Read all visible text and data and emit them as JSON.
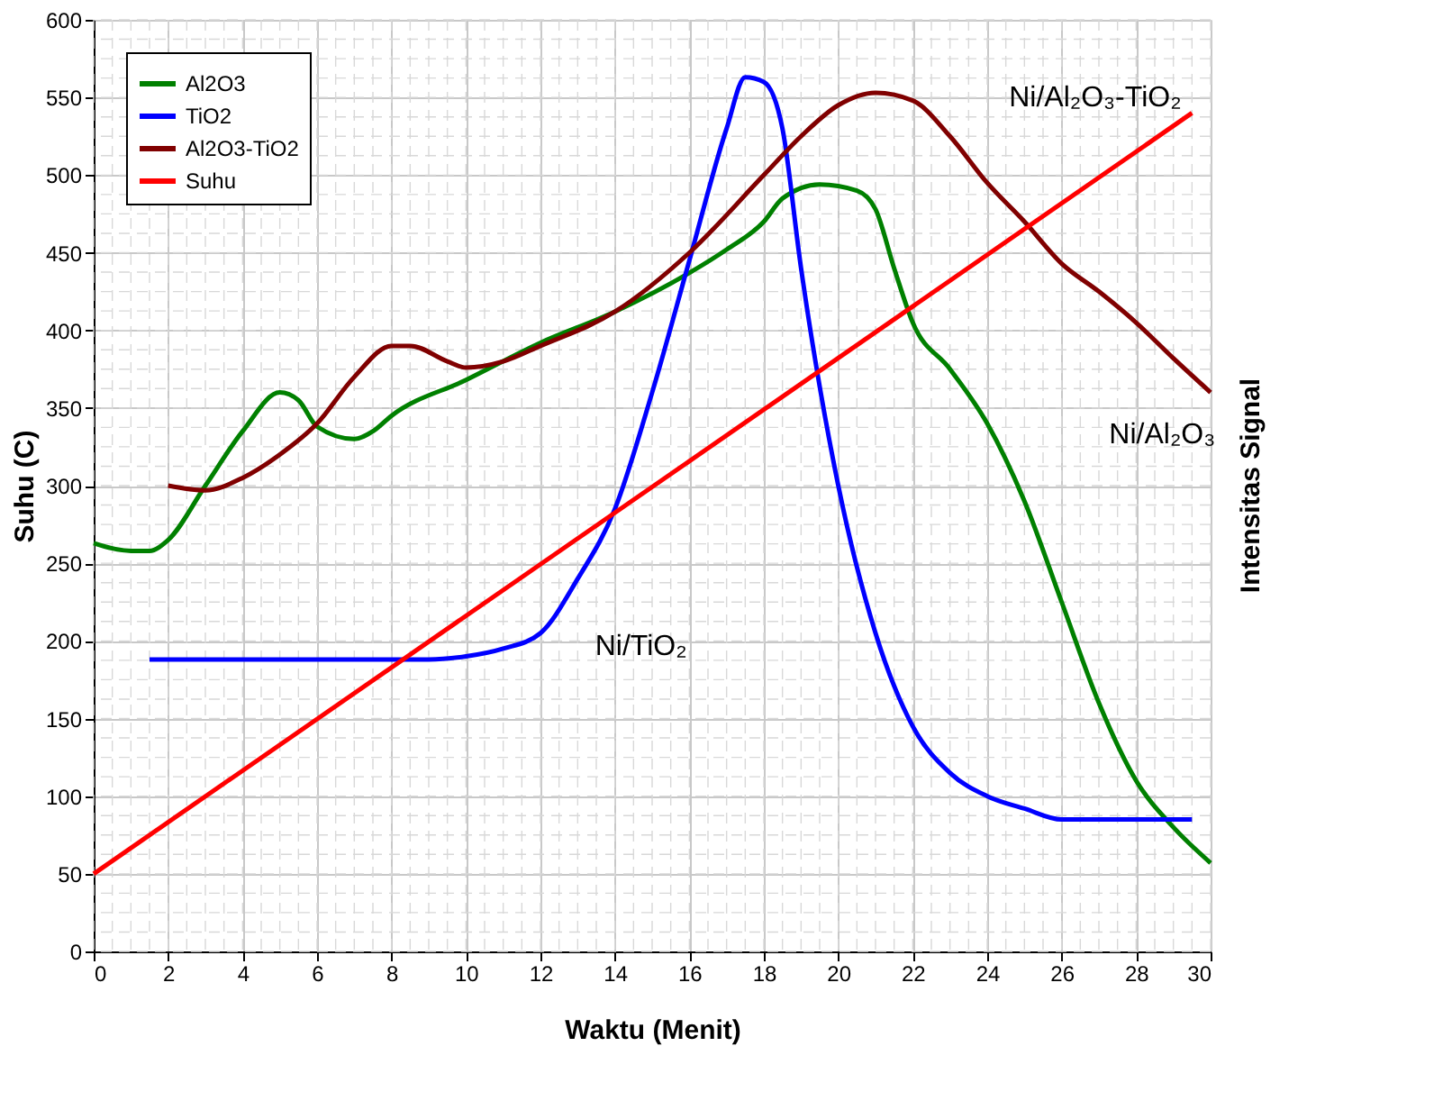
{
  "chart_data": {
    "type": "line",
    "xlabel": "Waktu (Menit)",
    "ylabel": "Suhu (C)",
    "y2label": "Intensitas Signal",
    "xlim": [
      0,
      30
    ],
    "xticks": [
      0,
      2,
      4,
      6,
      8,
      10,
      12,
      14,
      16,
      18,
      20,
      22,
      24,
      26,
      28,
      30
    ],
    "ylim": [
      0,
      600
    ],
    "yticks": [
      0,
      50,
      100,
      150,
      200,
      250,
      300,
      350,
      400,
      450,
      500,
      550,
      600
    ],
    "grid": true,
    "legend": "top left",
    "line_style": "solid",
    "marker": "none",
    "series": [
      {
        "name": "Al2O3",
        "color": "#008000",
        "x": [
          0,
          1,
          1.5,
          2,
          3,
          4,
          5,
          5.5,
          6,
          7,
          7.5,
          8,
          10,
          12,
          14,
          16,
          17,
          18,
          18.5,
          19.5,
          20.5,
          21,
          21.5,
          22,
          23,
          24,
          25,
          26,
          27,
          28,
          29,
          30
        ],
        "values": [
          263,
          258,
          258,
          265,
          300,
          335,
          360,
          355,
          338,
          330,
          335,
          345,
          368,
          392,
          412,
          437,
          452,
          470,
          485,
          494,
          490,
          478,
          440,
          405,
          375,
          340,
          290,
          225,
          160,
          110,
          80,
          57
        ]
      },
      {
        "name": "TiO2",
        "color": "#0000ff",
        "x": [
          1.5,
          4,
          8,
          9,
          10,
          11,
          12,
          13,
          14,
          15,
          16,
          17,
          17.5,
          18,
          18.5,
          19,
          20,
          21,
          22,
          23,
          24,
          25,
          26,
          27,
          29.5
        ],
        "values": [
          188,
          188,
          188,
          188,
          190,
          195,
          205,
          240,
          285,
          360,
          445,
          530,
          563,
          560,
          530,
          440,
          300,
          205,
          145,
          115,
          100,
          92,
          85,
          85,
          85
        ]
      },
      {
        "name": "Al2O3-TiO2",
        "color": "#800000",
        "x": [
          2,
          3,
          4,
          5,
          6,
          7,
          8,
          8.5,
          9.5,
          10,
          11,
          12,
          14,
          16,
          18,
          19,
          20,
          21,
          22,
          23,
          24,
          25,
          26,
          27,
          28,
          29,
          30
        ],
        "values": [
          300,
          297,
          305,
          320,
          340,
          370,
          390,
          390,
          380,
          376,
          380,
          390,
          412,
          450,
          500,
          525,
          545,
          553,
          548,
          525,
          495,
          470,
          443,
          425,
          405,
          382,
          360
        ]
      },
      {
        "name": "Suhu",
        "color": "#ff0000",
        "x": [
          0,
          29.5
        ],
        "values": [
          50,
          540
        ]
      }
    ],
    "annotations": [
      "Ni/Al₂O₃-TiO₂",
      "Ni/Al₂O₃",
      "Ni/TiO₂"
    ]
  }
}
